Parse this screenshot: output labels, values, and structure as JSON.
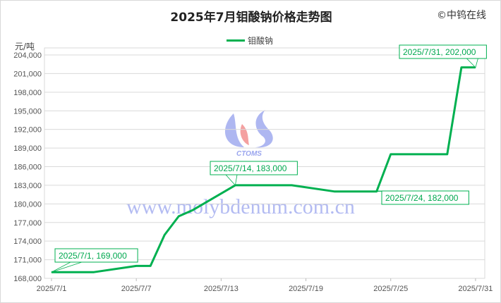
{
  "header": {
    "title": "2025年7月钼酸钠价格走势图",
    "copyright": "©中钨在线"
  },
  "watermark": {
    "site": "www.molybdenum.com.cn",
    "logo_text": "CTOMS"
  },
  "chart_data": {
    "type": "line",
    "title": "2025年7月钼酸钠价格走势图",
    "ylabel": "元/吨",
    "xlabel": "",
    "ylim": [
      168000,
      204000
    ],
    "yticks": [
      "168,000",
      "171,000",
      "174,000",
      "177,000",
      "180,000",
      "183,000",
      "186,000",
      "189,000",
      "192,000",
      "195,000",
      "198,000",
      "201,000",
      "204,000"
    ],
    "xticks": [
      "2025/7/1",
      "2025/7/7",
      "2025/7/13",
      "2025/7/19",
      "2025/7/25",
      "2025/7/31"
    ],
    "grid": true,
    "legend_position": "top",
    "color": "#00b050",
    "series": [
      {
        "name": "钼酸钠",
        "points": [
          [
            "2025/7/1",
            169000
          ],
          [
            "2025/7/2",
            169000
          ],
          [
            "2025/7/3",
            169000
          ],
          [
            "2025/7/4",
            169000
          ],
          [
            "2025/7/7",
            170000
          ],
          [
            "2025/7/8",
            170000
          ],
          [
            "2025/7/9",
            175000
          ],
          [
            "2025/7/10",
            178000
          ],
          [
            "2025/7/11",
            179000
          ],
          [
            "2025/7/14",
            183000
          ],
          [
            "2025/7/15",
            183000
          ],
          [
            "2025/7/16",
            183000
          ],
          [
            "2025/7/17",
            183000
          ],
          [
            "2025/7/18",
            183000
          ],
          [
            "2025/7/21",
            182000
          ],
          [
            "2025/7/22",
            182000
          ],
          [
            "2025/7/23",
            182000
          ],
          [
            "2025/7/24",
            182000
          ],
          [
            "2025/7/25",
            188000
          ],
          [
            "2025/7/28",
            188000
          ],
          [
            "2025/7/29",
            188000
          ],
          [
            "2025/7/30",
            202000
          ],
          [
            "2025/7/31",
            202000
          ]
        ]
      }
    ],
    "annotations": [
      {
        "date": "2025/7/1",
        "value": 169000,
        "text": "2025/7/1, 169,000"
      },
      {
        "date": "2025/7/14",
        "value": 183000,
        "text": "2025/7/14, 183,000"
      },
      {
        "date": "2025/7/24",
        "value": 182000,
        "text": "2025/7/24, 182,000"
      },
      {
        "date": "2025/7/31",
        "value": 202000,
        "text": "2025/7/31, 202,000"
      }
    ]
  }
}
